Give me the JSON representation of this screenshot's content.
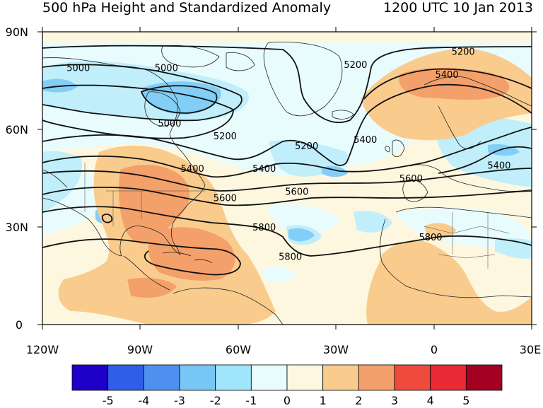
{
  "title_left": "500 hPa Height and Standardized Anomaly",
  "title_right": "1200 UTC 10 Jan 2013",
  "chart_data": {
    "type": "heatmap",
    "map_extent": {
      "lon": [
        -120,
        30
      ],
      "lat": [
        0,
        90
      ]
    },
    "x_ticks": [
      "120W",
      "90W",
      "60W",
      "30W",
      "0",
      "30E"
    ],
    "y_ticks": [
      "90N",
      "60N",
      "30N",
      "0"
    ],
    "colorbar": {
      "labels": [
        "-5",
        "-4",
        "-3",
        "-2",
        "-1",
        "0",
        "1",
        "2",
        "3",
        "4",
        "5"
      ],
      "colors": [
        "#1e00c8",
        "#2f5fe8",
        "#4d90f0",
        "#78c6f6",
        "#9fe5fb",
        "#e8fbfd",
        "#fdf7df",
        "#f9cc8e",
        "#f4a06a",
        "#ef4a3c",
        "#ea2a34",
        "#a30022"
      ]
    },
    "contour_labels": [
      {
        "value": "5000",
        "lon": -109,
        "lat": 79
      },
      {
        "value": "5000",
        "lon": -82,
        "lat": 79
      },
      {
        "value": "5000",
        "lon": -81,
        "lat": 62
      },
      {
        "value": "5200",
        "lon": -64,
        "lat": 58
      },
      {
        "value": "5200",
        "lon": -24,
        "lat": 80
      },
      {
        "value": "5200",
        "lon": 9,
        "lat": 84
      },
      {
        "value": "5200",
        "lon": -39,
        "lat": 55
      },
      {
        "value": "5400",
        "lon": 4,
        "lat": 77
      },
      {
        "value": "5400",
        "lon": -21,
        "lat": 57
      },
      {
        "value": "5400",
        "lon": -74,
        "lat": 48
      },
      {
        "value": "5400",
        "lon": -52,
        "lat": 48
      },
      {
        "value": "5400",
        "lon": 20,
        "lat": 49
      },
      {
        "value": "5600",
        "lon": -64,
        "lat": 39
      },
      {
        "value": "5600",
        "lon": -42,
        "lat": 41
      },
      {
        "value": "5600",
        "lon": -7,
        "lat": 45
      },
      {
        "value": "5800",
        "lon": -52,
        "lat": 30
      },
      {
        "value": "5800",
        "lon": -44,
        "lat": 21
      },
      {
        "value": "5800",
        "lon": -1,
        "lat": 27
      }
    ],
    "colors": {
      "land_fill": "#fdf7df",
      "coast": "#000000"
    }
  }
}
